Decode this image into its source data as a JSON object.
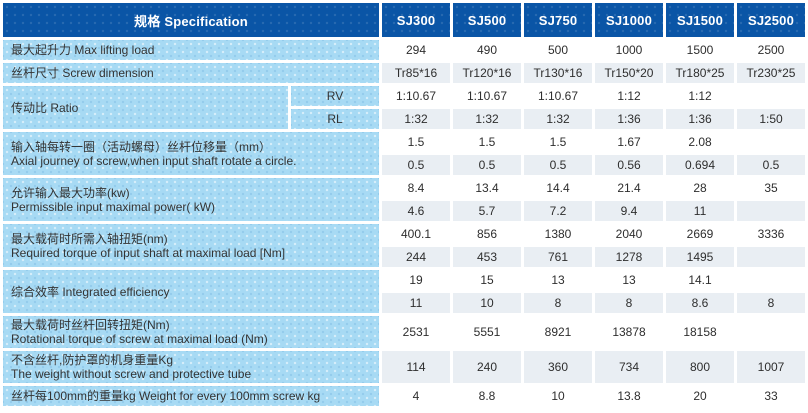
{
  "colors": {
    "header_bg": "#0a55a6",
    "header_text": "#ffffff",
    "label_bg": "#a7daf4",
    "value_row_bg": "#ffffff",
    "value_row_alt_bg": "#e9eef3",
    "text": "#333333"
  },
  "table": {
    "title": {
      "label": "规格  Specification"
    },
    "model_columns": [
      "SJ300",
      "SJ500",
      "SJ750",
      "SJ1000",
      "SJ1500",
      "SJ2500"
    ],
    "rows": [
      {
        "id": "max-lifting-load",
        "label": "最大起升力 Max lifting load",
        "values": [
          [
            "294",
            "490",
            "500",
            "1000",
            "1500",
            "2500"
          ]
        ]
      },
      {
        "id": "screw-dimension",
        "label": "丝杆尺寸  Screw dimension",
        "values": [
          [
            "Tr85*16",
            "Tr120*16",
            "Tr130*16",
            "Tr150*20",
            "Tr180*25",
            "Tr230*25"
          ]
        ]
      },
      {
        "id": "ratio",
        "label": "传动比 Ratio",
        "sub_labels": [
          "RV",
          "RL"
        ],
        "values": [
          [
            "1:10.67",
            "1:10.67",
            "1:10.67",
            "1:12",
            "1:12",
            ""
          ],
          [
            "1:32",
            "1:32",
            "1:32",
            "1:36",
            "1:36",
            "1:50"
          ]
        ]
      },
      {
        "id": "axial-journey",
        "label_lines": [
          "输入轴每转一圈（活动螺母）丝杆位移量（mm）",
          "Axial journey of screw,when input shaft rotate a circle."
        ],
        "values": [
          [
            "1.5",
            "1.5",
            "1.5",
            "1.67",
            "2.08",
            ""
          ],
          [
            "0.5",
            "0.5",
            "0.5",
            "0.56",
            "0.694",
            "0.5"
          ]
        ]
      },
      {
        "id": "max-input-power",
        "label_lines": [
          "允许输入最大功率(kw)",
          "Permissible input maximal power( kW)"
        ],
        "values": [
          [
            "8.4",
            "13.4",
            "14.4",
            "21.4",
            "28",
            "35"
          ],
          [
            "4.6",
            "5.7",
            "7.2",
            "9.4",
            "11",
            ""
          ]
        ]
      },
      {
        "id": "required-input-torque",
        "label_lines": [
          "最大载荷时所需入轴扭矩(nm)",
          "Required torque of input shaft at maximal load [Nm]"
        ],
        "values": [
          [
            "400.1",
            "856",
            "1380",
            "2040",
            "2669",
            "3336"
          ],
          [
            "244",
            "453",
            "761",
            "1278",
            "1495",
            ""
          ]
        ]
      },
      {
        "id": "integrated-efficiency",
        "label": "综合效率  Integrated efficiency",
        "values": [
          [
            "19",
            "15",
            "13",
            "13",
            "14.1",
            ""
          ],
          [
            "11",
            "10",
            "8",
            "8",
            "8.6",
            "8"
          ]
        ]
      },
      {
        "id": "rotational-torque",
        "label_lines": [
          "最大载荷时丝杆回转扭矩(Nm)",
          "Rotational torque of screw at maximal load  (Nm)"
        ],
        "values": [
          [
            "2531",
            "5551",
            "8921",
            "13878",
            "18158",
            ""
          ]
        ]
      },
      {
        "id": "body-weight",
        "label_lines": [
          "不含丝杆,防护罩的机身重量Kg",
          "The weight without screw and protective tube"
        ],
        "values": [
          [
            "114",
            "240",
            "360",
            "734",
            "800",
            "1007"
          ]
        ]
      },
      {
        "id": "screw-weight-per-100mm",
        "label": "丝杆每100mm的重量kg Weight for every 100mm screw kg",
        "values": [
          [
            "4",
            "8.8",
            "10",
            "13.8",
            "20",
            "33"
          ]
        ]
      }
    ]
  }
}
